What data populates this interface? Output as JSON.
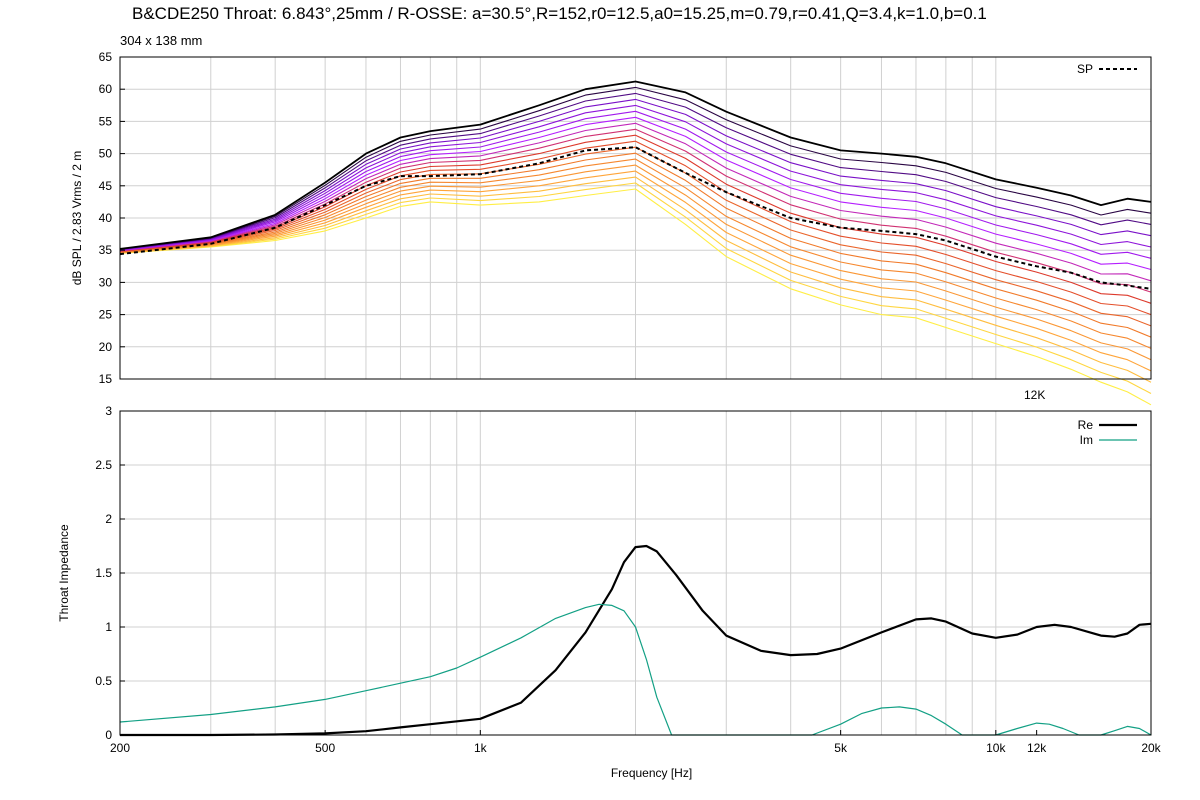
{
  "title": "B&CDE250 Throat: 6.843°,25mm / R-OSSE: a=30.5°,R=152,r0=12.5,a0=15.25,m=0.79,r=0.41,Q=3.4,k=1.0,b=0.1",
  "subtitle": "304 x 138 mm",
  "chart_data": [
    {
      "type": "line",
      "ylabel": "dB SPL / 2.83 Vrms / 2 m",
      "xscale": "log",
      "xlim": [
        200,
        20000
      ],
      "ylim": [
        15,
        65
      ],
      "yticks": [
        "15",
        "20",
        "25",
        "30",
        "35",
        "40",
        "45",
        "50",
        "55",
        "60",
        "65"
      ],
      "grid": "on",
      "legend": "top-right",
      "annotations": [
        "12K"
      ],
      "series_count": 19,
      "colormap": [
        "#000000",
        "#7a10c8",
        "#b51fff",
        "#dd3a2c",
        "#f17a2a",
        "#ffa53a",
        "#ffee45"
      ],
      "x": [
        200,
        300,
        400,
        500,
        600,
        700,
        800,
        1000,
        1300,
        1600,
        2000,
        2500,
        3000,
        4000,
        5000,
        6000,
        7000,
        8000,
        10000,
        12000,
        14000,
        16000,
        18000,
        20000
      ],
      "top": [
        35.2,
        37,
        40.5,
        45.5,
        50,
        52.5,
        53.5,
        54.5,
        57.5,
        60,
        61.2,
        59.5,
        56.5,
        52.5,
        50.5,
        50,
        49.5,
        48.5,
        46,
        44.7,
        43.5,
        42,
        43,
        42.5
      ],
      "bottom": [
        34.5,
        35.5,
        36.5,
        38,
        40,
        41.8,
        42.5,
        42,
        42.5,
        43.5,
        44.5,
        39,
        34,
        29,
        26.5,
        25,
        24.5,
        23,
        20.5,
        18.5,
        16.5,
        14.5,
        13,
        11
      ],
      "series": [
        {
          "name": "SP",
          "style": "dashed",
          "values": [
            34.4,
            36,
            38.5,
            42,
            45,
            46.5,
            46.5,
            46.8,
            48.5,
            50.5,
            51,
            47,
            44,
            40,
            38.5,
            38,
            37.5,
            36.5,
            34,
            32.5,
            31.5,
            30,
            29.5,
            29
          ]
        }
      ]
    },
    {
      "type": "line",
      "xlabel": "Frequency [Hz]",
      "ylabel": "Throat Impedance",
      "xscale": "log",
      "xlim": [
        200,
        20000
      ],
      "ylim": [
        0,
        3
      ],
      "yticks": [
        "0",
        "0.5",
        "1",
        "1.5",
        "2",
        "2.5",
        "3"
      ],
      "xticks": [
        {
          "value": 200,
          "label": "200"
        },
        {
          "value": 500,
          "label": "500"
        },
        {
          "value": 1000,
          "label": "1k"
        },
        {
          "value": 5000,
          "label": "5k"
        },
        {
          "value": 10000,
          "label": "10k"
        },
        {
          "value": 12000,
          "label": "12k"
        },
        {
          "value": 20000,
          "label": "20k"
        }
      ],
      "grid": "on",
      "legend": "top-right",
      "series": [
        {
          "name": "Re",
          "color": "#000000",
          "x": [
            200,
            300,
            400,
            500,
            600,
            700,
            800,
            1000,
            1200,
            1400,
            1600,
            1800,
            1900,
            2000,
            2100,
            2200,
            2400,
            2700,
            3000,
            3500,
            4000,
            4500,
            5000,
            6000,
            7000,
            7500,
            8000,
            9000,
            10000,
            11000,
            12000,
            13000,
            14000,
            16000,
            17000,
            18000,
            19000,
            20000
          ],
          "values": [
            0,
            0,
            0.005,
            0.015,
            0.035,
            0.07,
            0.1,
            0.15,
            0.3,
            0.6,
            0.95,
            1.35,
            1.6,
            1.74,
            1.75,
            1.7,
            1.48,
            1.15,
            0.92,
            0.78,
            0.74,
            0.75,
            0.8,
            0.95,
            1.07,
            1.08,
            1.05,
            0.94,
            0.9,
            0.93,
            1.0,
            1.02,
            1.0,
            0.92,
            0.91,
            0.94,
            1.02,
            1.03
          ]
        },
        {
          "name": "Im",
          "color": "#13a085",
          "x": [
            200,
            300,
            400,
            500,
            600,
            700,
            800,
            900,
            1000,
            1200,
            1400,
            1600,
            1700,
            1800,
            1900,
            2000,
            2100,
            2200,
            2350,
            4400,
            5000,
            5500,
            6000,
            6500,
            7000,
            7500,
            8000,
            8600,
            10000,
            11000,
            12000,
            12700,
            13500,
            14500,
            16000,
            17000,
            18000,
            19000,
            20000
          ],
          "values": [
            0.12,
            0.19,
            0.26,
            0.33,
            0.41,
            0.48,
            0.54,
            0.62,
            0.72,
            0.9,
            1.08,
            1.18,
            1.21,
            1.2,
            1.15,
            1.0,
            0.7,
            0.35,
            0,
            0,
            0.1,
            0.2,
            0.25,
            0.26,
            0.24,
            0.18,
            0.1,
            0,
            0,
            0.06,
            0.11,
            0.1,
            0.06,
            0,
            0,
            0.04,
            0.08,
            0.06,
            0
          ]
        }
      ]
    }
  ]
}
